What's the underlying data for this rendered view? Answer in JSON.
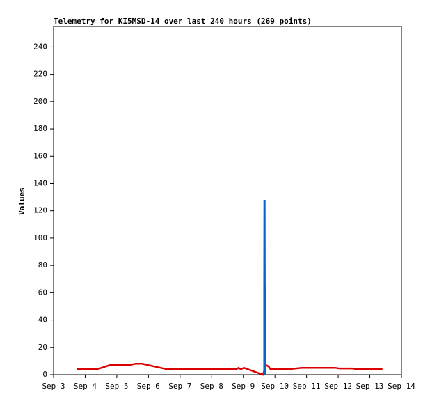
{
  "chart_data": {
    "type": "line",
    "title": "Telemetry for KI5MSD-14 over last 240 hours (269 points)",
    "y_label": "Values",
    "xlim": [
      3,
      14
    ],
    "xticks": [
      {
        "value": 3,
        "label": "Sep 3"
      },
      {
        "value": 4,
        "label": "Sep 4"
      },
      {
        "value": 5,
        "label": "Sep 5"
      },
      {
        "value": 6,
        "label": "Sep 6"
      },
      {
        "value": 7,
        "label": "Sep 7"
      },
      {
        "value": 8,
        "label": "Sep 8"
      },
      {
        "value": 9,
        "label": "Sep 9"
      },
      {
        "value": 10,
        "label": "Sep 10"
      },
      {
        "value": 11,
        "label": "Sep 11"
      },
      {
        "value": 12,
        "label": "Sep 12"
      },
      {
        "value": 13,
        "label": "Sep 13"
      },
      {
        "value": 14,
        "label": "Sep 14"
      }
    ],
    "ylim": [
      0,
      255
    ],
    "yticks": [
      0,
      20,
      40,
      60,
      80,
      100,
      120,
      140,
      160,
      180,
      200,
      220,
      240
    ],
    "series": [
      {
        "color": "#dd0000",
        "x": [
          3.73,
          4.38,
          4.78,
          5.37,
          5.6,
          5.8,
          6.58,
          8.78,
          8.85,
          8.92,
          9.02,
          9.62,
          9.72,
          9.8,
          9.86,
          10.45,
          10.85,
          11.9,
          12.05,
          12.45,
          12.6,
          13.4
        ],
        "values": [
          4,
          4,
          7,
          7,
          8,
          8,
          4,
          4,
          5,
          4,
          5,
          0,
          7,
          6,
          4,
          4,
          5,
          5,
          4.5,
          4.5,
          4,
          4
        ]
      },
      {
        "color": "#0066cc",
        "x": [
          9.665,
          9.665,
          9.67,
          9.675,
          9.675,
          9.68,
          9.685,
          9.685
        ],
        "values": [
          0,
          65,
          128,
          65,
          65,
          65,
          65,
          0
        ]
      }
    ]
  }
}
